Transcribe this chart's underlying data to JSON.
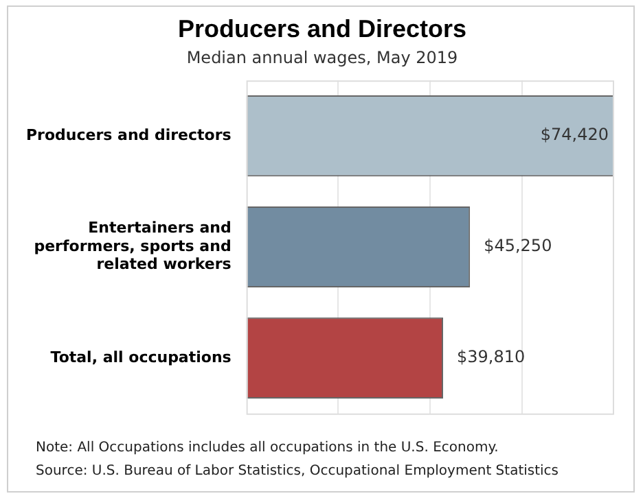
{
  "chart_data": {
    "type": "bar",
    "orientation": "horizontal",
    "title": "Producers and Directors",
    "subtitle": "Median annual wages, May 2019",
    "categories": [
      "Producers and directors",
      "Entertainers and performers, sports and related workers",
      "Total, all occupations"
    ],
    "values": [
      74420,
      45250,
      39810
    ],
    "colors": [
      "#adbfca",
      "#728ca1",
      "#b34444"
    ],
    "value_labels": [
      "$74,420",
      "$45,250",
      "$39,810"
    ],
    "xlim": [
      0,
      74420
    ],
    "xticks": [
      {
        "value": 18605,
        "label": null
      },
      {
        "value": 37210,
        "label": null
      },
      {
        "value": 55815,
        "label": null
      }
    ],
    "grid": "x",
    "tick_labels": "y",
    "annotations": [
      "Note: All Occupations includes all occupations in the U.S. Economy.",
      "Source: U.S. Bureau of Labor Statistics, Occupational Employment Statistics"
    ]
  }
}
